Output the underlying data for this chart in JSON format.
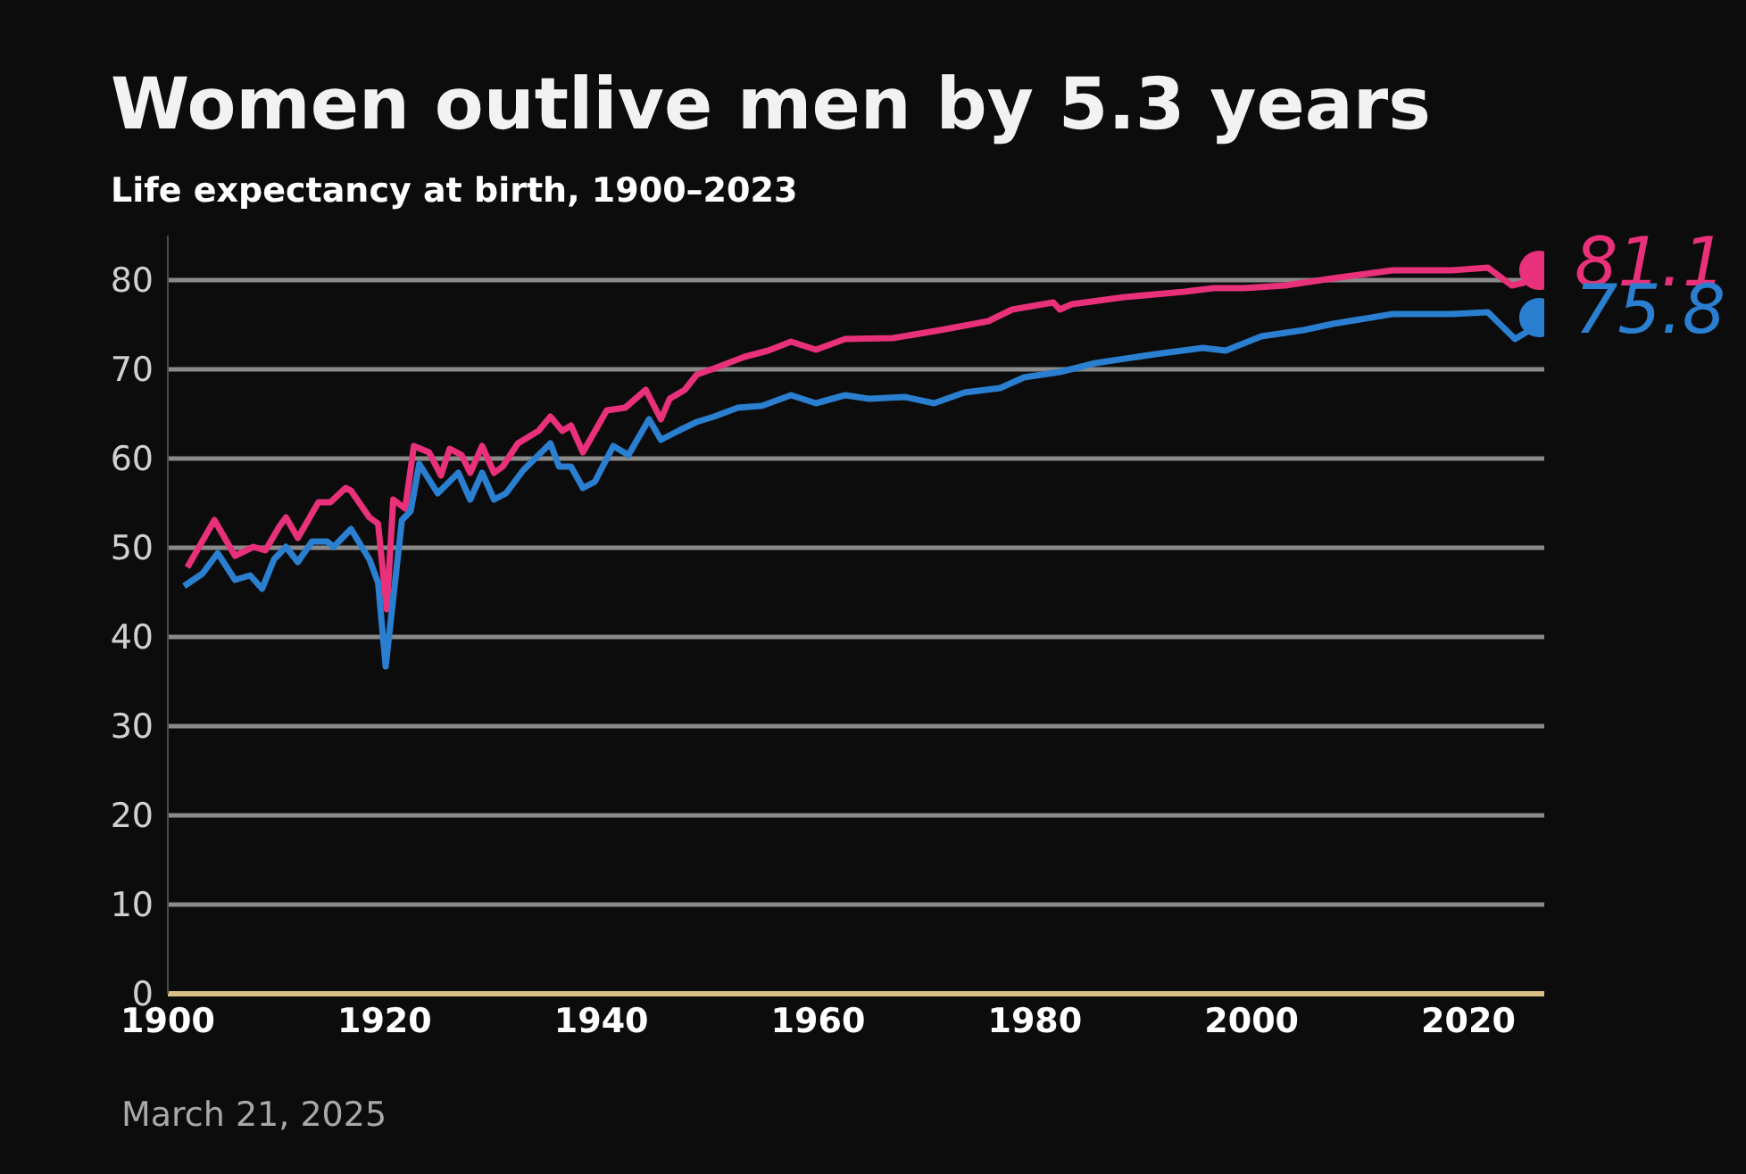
{
  "chart_data": {
    "type": "line",
    "title": "Women outlive men by 5.3 years",
    "subtitle": "Life expectancy at birth, 1900–2023",
    "annotations": [
      "March 21, 2025"
    ],
    "xlim": [
      1900,
      2027
    ],
    "xticks": [
      1900,
      1920,
      1940,
      1960,
      1980,
      2000,
      2020
    ],
    "ylim": [
      0,
      85
    ],
    "yticks": [
      0,
      10,
      20,
      30,
      40,
      50,
      60,
      70,
      80
    ],
    "grid": "y",
    "series": [
      {
        "color": "#e8317a",
        "x": [
          1901.8,
          1904.3,
          1906.2,
          1907.9,
          1909,
          1910.3,
          1910.9,
          1912,
          1913.9,
          1915,
          1916.4,
          1916.9,
          1918.6,
          1919.4,
          1920.2,
          1920.8,
          1921.9,
          1922.7,
          1924.1,
          1925.2,
          1926,
          1927.1,
          1927.9,
          1929,
          1930.1,
          1930.9,
          1932.3,
          1934.2,
          1935.3,
          1936.4,
          1937.2,
          1938.3,
          1940.5,
          1942.2,
          1944.1,
          1945.5,
          1946.3,
          1947.7,
          1948.8,
          1950.4,
          1953.2,
          1955.4,
          1957.5,
          1959.8,
          1962.5,
          1966.9,
          1971.3,
          1975.7,
          1977.9,
          1981.7,
          1982.3,
          1983.4,
          1988.3,
          1993.8,
          1996.5,
          1999.3,
          2003.1,
          2007.5,
          2013,
          2018.5,
          2021.8,
          2024,
          2025.1,
          2026.5
        ],
        "values": [
          47.8,
          53.1,
          49.1,
          50.1,
          49.7,
          52.4,
          53.4,
          51.1,
          55.1,
          55.1,
          56.7,
          56.4,
          53.4,
          52.7,
          43.1,
          55.4,
          54.4,
          61.4,
          60.7,
          58.1,
          61.1,
          60.4,
          58.4,
          61.4,
          58.4,
          59.1,
          61.7,
          63.1,
          64.7,
          63.1,
          63.7,
          60.7,
          65.4,
          65.7,
          67.7,
          64.4,
          66.7,
          67.7,
          69.4,
          70.1,
          71.4,
          72.1,
          73.1,
          72.2,
          73.4,
          73.5,
          74.4,
          75.4,
          76.7,
          77.5,
          76.7,
          77.3,
          78.1,
          78.7,
          79.1,
          79.1,
          79.4,
          80.2,
          81.1,
          81.1,
          81.4,
          79.4,
          79.7,
          81.1
        ],
        "value_labels": [
          null,
          null,
          null,
          null,
          null,
          null,
          null,
          null,
          null,
          null,
          null,
          null,
          null,
          null,
          null,
          null,
          null,
          null,
          null,
          null,
          null,
          null,
          null,
          null,
          null,
          null,
          null,
          null,
          null,
          null,
          null,
          null,
          null,
          null,
          null,
          null,
          null,
          null,
          null,
          null,
          null,
          null,
          null,
          null,
          null,
          null,
          null,
          null,
          null,
          null,
          null,
          null,
          null,
          null,
          null,
          null,
          null,
          null,
          null,
          null,
          null,
          null,
          null,
          "81.1"
        ]
      },
      {
        "color": "#2a7fd0",
        "x": [
          1901.5,
          1903.2,
          1904.6,
          1906.2,
          1907.6,
          1908.7,
          1909.8,
          1910.9,
          1912,
          1913.3,
          1914.7,
          1915.3,
          1916.9,
          1918.6,
          1919.4,
          1920.1,
          1921.6,
          1922.4,
          1923.2,
          1924.9,
          1926.8,
          1927.9,
          1929,
          1930.1,
          1931.2,
          1932.8,
          1935.3,
          1936.1,
          1937.2,
          1938.3,
          1939.4,
          1941.1,
          1942.5,
          1944.4,
          1945.5,
          1947.1,
          1948.8,
          1950.4,
          1952.6,
          1954.8,
          1957.5,
          1959.8,
          1962.5,
          1964.7,
          1968,
          1970.7,
          1973.5,
          1976.8,
          1979,
          1982.3,
          1985.6,
          1991.1,
          1995.5,
          1997.6,
          2000.9,
          2004.8,
          2007.5,
          2013,
          2018.5,
          2021.8,
          2024.3,
          2025.4,
          2026.5
        ],
        "values": [
          45.7,
          47.1,
          49.4,
          46.4,
          46.9,
          45.4,
          48.7,
          50.1,
          48.4,
          50.7,
          50.7,
          50.1,
          52.1,
          48.7,
          46.1,
          36.7,
          53.1,
          54.1,
          59.4,
          56.1,
          58.4,
          55.4,
          58.4,
          55.4,
          56.1,
          58.7,
          61.7,
          59.1,
          59.1,
          56.7,
          57.4,
          61.4,
          60.4,
          64.4,
          62.1,
          63.1,
          64.1,
          64.7,
          65.7,
          65.9,
          67.1,
          66.2,
          67.1,
          66.7,
          66.9,
          66.2,
          67.4,
          67.9,
          69.1,
          69.7,
          70.7,
          71.7,
          72.4,
          72.1,
          73.7,
          74.4,
          75.1,
          76.2,
          76.2,
          76.4,
          73.4,
          74.2,
          75.8
        ],
        "value_labels": [
          null,
          null,
          null,
          null,
          null,
          null,
          null,
          null,
          null,
          null,
          null,
          null,
          null,
          null,
          null,
          null,
          null,
          null,
          null,
          null,
          null,
          null,
          null,
          null,
          null,
          null,
          null,
          null,
          null,
          null,
          null,
          null,
          null,
          null,
          null,
          null,
          null,
          null,
          null,
          null,
          null,
          null,
          null,
          null,
          null,
          null,
          null,
          null,
          null,
          null,
          null,
          null,
          null,
          null,
          null,
          null,
          null,
          null,
          null,
          null,
          null,
          null,
          "75.8"
        ]
      }
    ]
  }
}
